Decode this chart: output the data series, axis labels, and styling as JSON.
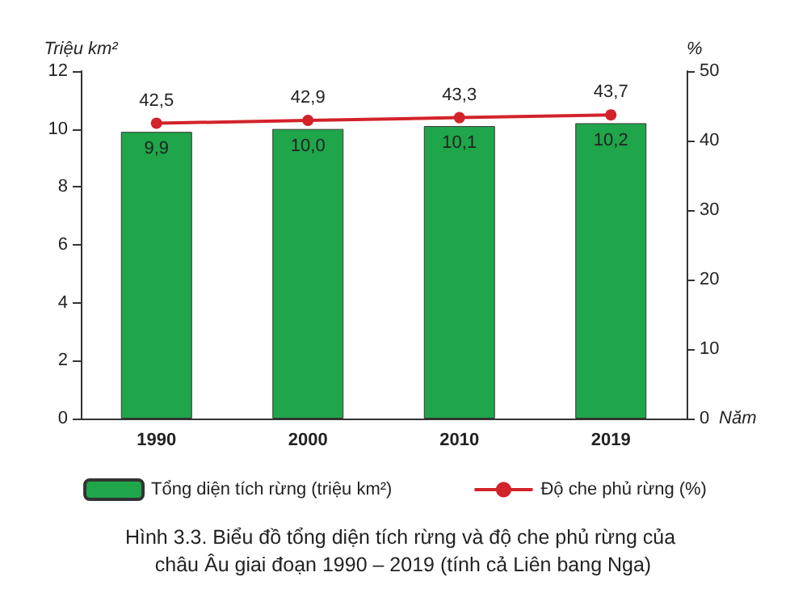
{
  "chart_data": {
    "type": "bar",
    "title": "Hình 3.3. Biểu đồ tổng diện tích rừng và độ che phủ rừng của châu Âu giai đoạn 1990 – 2019 (tính cả Liên bang Nga)",
    "xlabel": "Năm",
    "ylabel": "Triệu km²",
    "y2label": "%",
    "categories": [
      "1990",
      "2000",
      "2010",
      "2019"
    ],
    "series": [
      {
        "name": "Tổng diện tích rừng (triệu km²)",
        "color": "#1fa64a",
        "values": [
          9.9,
          10.0,
          10.1,
          10.2
        ],
        "value_labels": [
          "9,9",
          "10,0",
          "10,1",
          "10,2"
        ]
      },
      {
        "name": "Độ che phủ rừng (%)",
        "type": "line",
        "axis": "y2",
        "color": "#d2232a",
        "values": [
          42.5,
          42.9,
          43.3,
          43.7
        ],
        "value_labels": [
          "42,5",
          "42,9",
          "43,3",
          "43,7"
        ],
        "marker": "circle"
      }
    ],
    "ylim": [
      0,
      12
    ],
    "yticks": [
      0,
      2,
      4,
      6,
      8,
      10,
      12
    ],
    "y2lim": [
      0,
      50
    ],
    "y2ticks": [
      0,
      10,
      20,
      30,
      40,
      50
    ],
    "grid": false,
    "legend": "bottom"
  }
}
